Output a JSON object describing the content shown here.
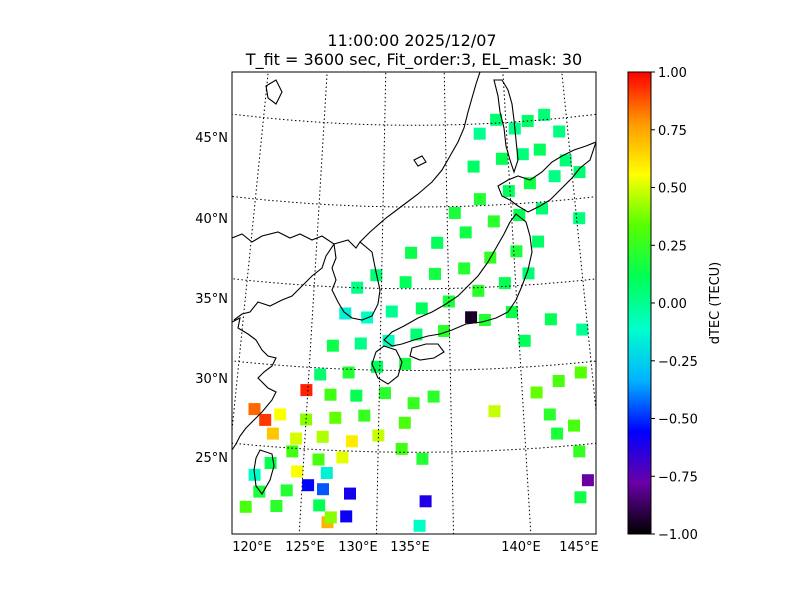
{
  "title": {
    "line1": "11:00:00 2025/12/07",
    "line2": "T_fit = 3600 sec, Fit_order:3, EL_mask: 30"
  },
  "map": {
    "projection": "conic",
    "lon_range": [
      120,
      145
    ],
    "lat_range": [
      20,
      49
    ],
    "lon_labels": [
      {
        "lon": 120,
        "text": "120°E"
      },
      {
        "lon": 125,
        "text": "125°E"
      },
      {
        "lon": 130,
        "text": "130°E"
      },
      {
        "lon": 135,
        "text": "135°E"
      },
      {
        "lon": 140,
        "text": "140°E"
      },
      {
        "lon": 145,
        "text": "145°E"
      }
    ],
    "lat_labels": [
      {
        "lat": 25,
        "text": "25°N"
      },
      {
        "lat": 30,
        "text": "30°N"
      },
      {
        "lat": 35,
        "text": "35°N"
      },
      {
        "lat": 40,
        "text": "40°N"
      },
      {
        "lat": 45,
        "text": "45°N"
      }
    ],
    "gridlines": true,
    "coastline_color": "#000000"
  },
  "colorbar": {
    "label": "dTEC (TECU)",
    "range": [
      -1,
      1
    ],
    "ticks": [
      {
        "value": 1.0,
        "text": "1.00"
      },
      {
        "value": 0.75,
        "text": "0.75"
      },
      {
        "value": 0.5,
        "text": "0.50"
      },
      {
        "value": 0.25,
        "text": "0.25"
      },
      {
        "value": 0.0,
        "text": "0.00"
      },
      {
        "value": -0.25,
        "text": "−0.25"
      },
      {
        "value": -0.5,
        "text": "−0.50"
      },
      {
        "value": -0.75,
        "text": "−0.75"
      },
      {
        "value": -1.0,
        "text": "−1.00"
      }
    ],
    "colors": [
      "#000000",
      "#6a00a8",
      "#0000ff",
      "#00b4ff",
      "#00ffcc",
      "#00ff55",
      "#55ff00",
      "#ffff00",
      "#ff9900",
      "#ff0000"
    ]
  },
  "chart_data": {
    "type": "heatmap",
    "value_field": "dTEC",
    "points": [
      {
        "lon": 143.2,
        "lat": 45.3,
        "v": 0.05
      },
      {
        "lon": 144.3,
        "lat": 44.2,
        "v": 0.03
      },
      {
        "lon": 141.8,
        "lat": 45.0,
        "v": 0.08
      },
      {
        "lon": 140.7,
        "lat": 44.6,
        "v": 0.02
      },
      {
        "lon": 139.2,
        "lat": 45.2,
        "v": 0.06
      },
      {
        "lon": 137.8,
        "lat": 44.4,
        "v": 0.0
      },
      {
        "lon": 142.6,
        "lat": 43.2,
        "v": 0.1
      },
      {
        "lon": 141.2,
        "lat": 43.0,
        "v": 0.04
      },
      {
        "lon": 139.5,
        "lat": 42.8,
        "v": 0.12
      },
      {
        "lon": 137.2,
        "lat": 42.4,
        "v": 0.08
      },
      {
        "lon": 144.6,
        "lat": 42.4,
        "v": 0.05
      },
      {
        "lon": 143.6,
        "lat": 41.5,
        "v": 0.02
      },
      {
        "lon": 141.6,
        "lat": 41.2,
        "v": 0.15
      },
      {
        "lon": 139.9,
        "lat": 40.8,
        "v": 0.1
      },
      {
        "lon": 137.6,
        "lat": 40.4,
        "v": 0.2
      },
      {
        "lon": 135.6,
        "lat": 39.6,
        "v": 0.18
      },
      {
        "lon": 142.4,
        "lat": 39.6,
        "v": 0.06
      },
      {
        "lon": 140.6,
        "lat": 39.3,
        "v": 0.12
      },
      {
        "lon": 138.6,
        "lat": 39.0,
        "v": 0.22
      },
      {
        "lon": 136.4,
        "lat": 38.4,
        "v": 0.15
      },
      {
        "lon": 134.2,
        "lat": 37.8,
        "v": 0.1
      },
      {
        "lon": 132.2,
        "lat": 37.2,
        "v": 0.14
      },
      {
        "lon": 141.9,
        "lat": 37.6,
        "v": 0.08
      },
      {
        "lon": 140.2,
        "lat": 37.1,
        "v": 0.18
      },
      {
        "lon": 138.2,
        "lat": 36.8,
        "v": 0.24
      },
      {
        "lon": 136.2,
        "lat": 36.2,
        "v": 0.2
      },
      {
        "lon": 134.0,
        "lat": 35.9,
        "v": 0.16
      },
      {
        "lon": 131.8,
        "lat": 35.4,
        "v": 0.1
      },
      {
        "lon": 129.6,
        "lat": 35.8,
        "v": 0.05
      },
      {
        "lon": 128.2,
        "lat": 35.0,
        "v": 0.02
      },
      {
        "lon": 141.0,
        "lat": 35.7,
        "v": 0.06
      },
      {
        "lon": 139.2,
        "lat": 35.2,
        "v": 0.12
      },
      {
        "lon": 137.2,
        "lat": 34.8,
        "v": 0.22
      },
      {
        "lon": 135.0,
        "lat": 34.2,
        "v": 0.18
      },
      {
        "lon": 133.0,
        "lat": 33.8,
        "v": 0.1
      },
      {
        "lon": 130.8,
        "lat": 33.6,
        "v": 0.0
      },
      {
        "lon": 129.0,
        "lat": 33.2,
        "v": -0.1
      },
      {
        "lon": 127.4,
        "lat": 33.4,
        "v": -0.15
      },
      {
        "lon": 139.6,
        "lat": 33.4,
        "v": 0.14
      },
      {
        "lon": 137.6,
        "lat": 33.0,
        "v": 0.2
      },
      {
        "lon": 136.6,
        "lat": 33.2,
        "v": -0.95
      },
      {
        "lon": 134.6,
        "lat": 32.4,
        "v": 0.22
      },
      {
        "lon": 132.6,
        "lat": 32.2,
        "v": 0.06
      },
      {
        "lon": 130.6,
        "lat": 31.8,
        "v": -0.08
      },
      {
        "lon": 128.6,
        "lat": 31.6,
        "v": 0.02
      },
      {
        "lon": 126.6,
        "lat": 31.4,
        "v": 0.14
      },
      {
        "lon": 131.8,
        "lat": 30.4,
        "v": 0.16
      },
      {
        "lon": 129.8,
        "lat": 30.2,
        "v": 0.1
      },
      {
        "lon": 127.8,
        "lat": 29.8,
        "v": 0.2
      },
      {
        "lon": 125.8,
        "lat": 29.6,
        "v": 0.06
      },
      {
        "lon": 130.4,
        "lat": 28.6,
        "v": 0.22
      },
      {
        "lon": 128.4,
        "lat": 28.4,
        "v": 0.12
      },
      {
        "lon": 126.6,
        "lat": 28.4,
        "v": 0.28
      },
      {
        "lon": 124.9,
        "lat": 28.6,
        "v": 0.95
      },
      {
        "lon": 129.0,
        "lat": 27.2,
        "v": 0.25
      },
      {
        "lon": 127.0,
        "lat": 27.0,
        "v": 0.35
      },
      {
        "lon": 125.0,
        "lat": 26.8,
        "v": 0.4
      },
      {
        "lon": 123.2,
        "lat": 27.0,
        "v": 0.55
      },
      {
        "lon": 122.2,
        "lat": 26.6,
        "v": 0.92
      },
      {
        "lon": 121.4,
        "lat": 27.2,
        "v": 0.85
      },
      {
        "lon": 122.8,
        "lat": 25.8,
        "v": 0.68
      },
      {
        "lon": 124.4,
        "lat": 25.6,
        "v": 0.5
      },
      {
        "lon": 126.2,
        "lat": 25.8,
        "v": 0.45
      },
      {
        "lon": 128.2,
        "lat": 25.6,
        "v": 0.6
      },
      {
        "lon": 130.0,
        "lat": 26.0,
        "v": 0.48
      },
      {
        "lon": 124.2,
        "lat": 24.8,
        "v": 0.28
      },
      {
        "lon": 126.0,
        "lat": 24.4,
        "v": 0.3
      },
      {
        "lon": 127.6,
        "lat": 24.6,
        "v": 0.52
      },
      {
        "lon": 122.8,
        "lat": 24.0,
        "v": 0.12
      },
      {
        "lon": 124.6,
        "lat": 23.6,
        "v": 0.55
      },
      {
        "lon": 126.6,
        "lat": 23.6,
        "v": -0.15
      },
      {
        "lon": 121.8,
        "lat": 23.2,
        "v": -0.1
      },
      {
        "lon": 125.4,
        "lat": 22.8,
        "v": -0.55
      },
      {
        "lon": 126.4,
        "lat": 22.6,
        "v": -0.45
      },
      {
        "lon": 124.0,
        "lat": 22.4,
        "v": 0.2
      },
      {
        "lon": 122.2,
        "lat": 22.2,
        "v": 0.18
      },
      {
        "lon": 121.4,
        "lat": 21.2,
        "v": 0.3
      },
      {
        "lon": 123.4,
        "lat": 21.4,
        "v": 0.22
      },
      {
        "lon": 126.2,
        "lat": 21.6,
        "v": 0.12
      },
      {
        "lon": 128.2,
        "lat": 22.4,
        "v": -0.6
      },
      {
        "lon": 128.0,
        "lat": 21.0,
        "v": -0.58
      },
      {
        "lon": 126.8,
        "lat": 20.6,
        "v": 0.72
      },
      {
        "lon": 127.0,
        "lat": 20.9,
        "v": 0.4
      },
      {
        "lon": 133.2,
        "lat": 22.0,
        "v": -0.62
      },
      {
        "lon": 132.8,
        "lat": 20.5,
        "v": -0.1
      },
      {
        "lon": 133.0,
        "lat": 24.6,
        "v": 0.2
      },
      {
        "lon": 131.6,
        "lat": 25.2,
        "v": 0.28
      },
      {
        "lon": 131.8,
        "lat": 26.8,
        "v": 0.3
      },
      {
        "lon": 133.8,
        "lat": 28.4,
        "v": 0.22
      },
      {
        "lon": 132.4,
        "lat": 28.0,
        "v": 0.25
      },
      {
        "lon": 138.0,
        "lat": 27.4,
        "v": 0.48
      },
      {
        "lon": 141.0,
        "lat": 28.4,
        "v": 0.35
      },
      {
        "lon": 142.6,
        "lat": 29.0,
        "v": 0.3
      },
      {
        "lon": 144.2,
        "lat": 29.4,
        "v": 0.33
      },
      {
        "lon": 141.8,
        "lat": 27.0,
        "v": 0.22
      },
      {
        "lon": 143.4,
        "lat": 26.2,
        "v": 0.3
      },
      {
        "lon": 142.2,
        "lat": 25.8,
        "v": 0.18
      },
      {
        "lon": 143.6,
        "lat": 24.6,
        "v": 0.25
      },
      {
        "lon": 145.6,
        "lat": 27.8,
        "v": 0.45
      },
      {
        "lon": 144.0,
        "lat": 22.8,
        "v": -0.78
      },
      {
        "lon": 143.4,
        "lat": 21.8,
        "v": 0.15
      },
      {
        "lon": 144.6,
        "lat": 32.0,
        "v": 0.0
      },
      {
        "lon": 142.4,
        "lat": 32.8,
        "v": 0.12
      },
      {
        "lon": 140.4,
        "lat": 31.6,
        "v": 0.1
      },
      {
        "lon": 145.2,
        "lat": 38.8,
        "v": 0.04
      },
      {
        "lon": 145.6,
        "lat": 41.6,
        "v": 0.06
      }
    ]
  }
}
